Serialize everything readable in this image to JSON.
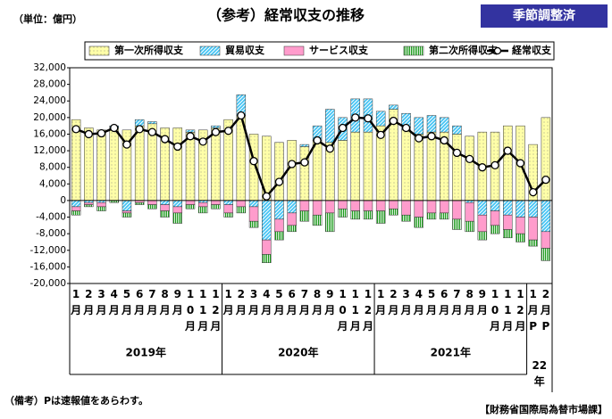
{
  "chart_data": {
    "type": "stacked_bar_line",
    "title": "（参考）経常収支の推移",
    "unit_label": "（単位：億円）",
    "badge": "季節調整済",
    "note": "（備考）Pは速報値をあらわす。",
    "source": "【財務省国際局為替市場課】",
    "categories": [
      "1月",
      "2月",
      "3月",
      "4月",
      "5月",
      "6月",
      "7月",
      "8月",
      "9月",
      "10月",
      "11月",
      "12月",
      "1月",
      "2月",
      "3月",
      "4月",
      "5月",
      "6月",
      "7月",
      "8月",
      "9月",
      "10月",
      "11月",
      "12月",
      "1月",
      "2月",
      "3月",
      "4月",
      "5月",
      "6月",
      "7月",
      "8月",
      "9月",
      "10月",
      "11月",
      "12月",
      "1月P",
      "2月P"
    ],
    "year_groups": [
      {
        "label": "2019年",
        "count": 12
      },
      {
        "label": "2020年",
        "count": 12
      },
      {
        "label": "2021年",
        "count": 12
      },
      {
        "label": "22年",
        "count": 2
      }
    ],
    "ylim": [
      -20000,
      32000
    ],
    "yticks": [
      {
        "value": 32000,
        "label": "32,000"
      },
      {
        "value": 28000,
        "label": "28,000"
      },
      {
        "value": 24000,
        "label": "24,000"
      },
      {
        "value": 20000,
        "label": "20,000"
      },
      {
        "value": 16000,
        "label": "16,000"
      },
      {
        "value": 12000,
        "label": "12,000"
      },
      {
        "value": 8000,
        "label": "8,000"
      },
      {
        "value": 4000,
        "label": "4,000"
      },
      0,
      {
        "value": -4000,
        "label": "-4,000"
      },
      {
        "value": -8000,
        "label": "-8,000"
      },
      {
        "value": -12000,
        "label": "-12,000"
      },
      {
        "value": -16000,
        "label": "-16,000"
      },
      {
        "value": -20000,
        "label": "-20,000"
      }
    ],
    "series": [
      {
        "name": "第一次所得収支",
        "color": "#ffffa8",
        "pattern": "dots",
        "values": [
          19500,
          17500,
          17000,
          17500,
          17000,
          18000,
          18500,
          17500,
          17500,
          16500,
          17000,
          17500,
          19500,
          20500,
          16000,
          15500,
          14000,
          14500,
          13000,
          14500,
          14000,
          14500,
          16500,
          16500,
          18000,
          22000,
          17000,
          16000,
          16500,
          16500,
          16000,
          15500,
          16500,
          16500,
          18000,
          18000,
          13500,
          20000
        ]
      },
      {
        "name": "貿易収支",
        "color": "#44c4f4",
        "pattern": "hatch",
        "values": [
          -1500,
          -500,
          -500,
          500,
          -2500,
          1500,
          500,
          -1000,
          -1500,
          500,
          -500,
          500,
          -1000,
          5000,
          -1500,
          -9500,
          -4500,
          -3000,
          500,
          3500,
          8000,
          5500,
          8000,
          8000,
          3500,
          1000,
          4000,
          4000,
          4000,
          3500,
          2000,
          -500,
          -3500,
          -2500,
          -3500,
          -4000,
          -4000,
          -7500
        ]
      },
      {
        "name": "サービス収支",
        "color": "#ff9ccc",
        "pattern": "solid",
        "values": [
          -1000,
          -500,
          -1000,
          0,
          -500,
          -500,
          -1000,
          -1500,
          -1500,
          -1000,
          -1000,
          -1000,
          -2000,
          -1500,
          -3500,
          -3500,
          -3000,
          -3000,
          -2500,
          -3500,
          -3000,
          -2000,
          -2500,
          -2500,
          -2500,
          -2000,
          -3500,
          -4000,
          -3000,
          -3000,
          -4500,
          -4500,
          -4000,
          -3500,
          -3500,
          -4000,
          -5500,
          -4000
        ]
      },
      {
        "name": "第二次所得収支",
        "color": "#1a9a1a",
        "pattern": "stripes",
        "values": [
          -1000,
          -500,
          -1000,
          -500,
          -1000,
          -500,
          -1000,
          -1500,
          -2500,
          -1000,
          -1500,
          -1000,
          -1000,
          -1500,
          -1500,
          -2000,
          -2000,
          -1500,
          -2500,
          -2500,
          -4500,
          -2000,
          -2000,
          -2000,
          -3000,
          -1500,
          -1500,
          -2500,
          -1500,
          -1500,
          -2500,
          -2500,
          -2000,
          -2000,
          -2000,
          -2000,
          -1500,
          -3000
        ]
      },
      {
        "name": "経常収支",
        "color": "#000000",
        "kind": "line",
        "values": [
          17200,
          16000,
          16200,
          17500,
          13500,
          17200,
          16500,
          14800,
          13000,
          15500,
          14200,
          16500,
          16800,
          20500,
          9500,
          1000,
          4500,
          8800,
          9200,
          14500,
          12500,
          17500,
          20000,
          19800,
          15800,
          19200,
          17500,
          15000,
          15500,
          14500,
          11500,
          10000,
          8000,
          8500,
          12000,
          9000,
          2000,
          5000
        ]
      }
    ]
  }
}
